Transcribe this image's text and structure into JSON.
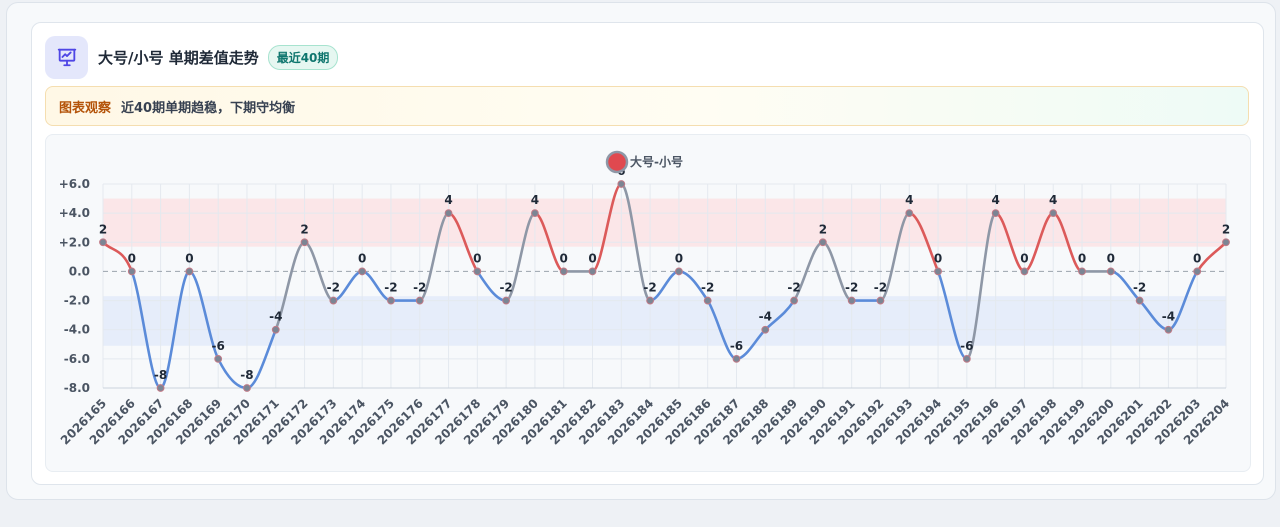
{
  "header": {
    "icon": "presentation-chart-icon",
    "title": "大号/小号 单期差值走势",
    "badge": "最近40期"
  },
  "note": {
    "label": "图表观察",
    "text": "近40期单期趋稳，下期守均衡"
  },
  "colors": {
    "up": "#dc5a5a",
    "down": "#5b8bd9",
    "flat": "#8e97a6",
    "upper_band": "#fbe3e6",
    "lower_band": "#e3ebfa",
    "legend_dot": "#e0494f"
  },
  "chart_data": {
    "type": "line",
    "series": [
      {
        "name": "大号-小号",
        "values": [
          2,
          0,
          -8,
          0,
          -6,
          -8,
          -4,
          2,
          -2,
          0,
          -2,
          -2,
          4,
          0,
          -2,
          4,
          0,
          0,
          6,
          -2,
          0,
          -2,
          -6,
          -4,
          -2,
          2,
          -2,
          -2,
          4,
          0,
          -6,
          4,
          0,
          4,
          0,
          0,
          -2,
          -4,
          0,
          2
        ]
      }
    ],
    "categories": [
      "2026165",
      "2026166",
      "2026167",
      "2026168",
      "2026169",
      "2026170",
      "2026171",
      "2026172",
      "2026173",
      "2026174",
      "2026175",
      "2026176",
      "2026177",
      "2026178",
      "2026179",
      "2026180",
      "2026181",
      "2026182",
      "2026183",
      "2026184",
      "2026185",
      "2026186",
      "2026187",
      "2026188",
      "2026189",
      "2026190",
      "2026191",
      "2026192",
      "2026193",
      "2026194",
      "2026195",
      "2026196",
      "2026197",
      "2026198",
      "2026199",
      "2026200",
      "2026201",
      "2026202",
      "2026203",
      "2026204"
    ],
    "yticks": [
      "+6.0",
      "+4.0",
      "+2.0",
      "0.0",
      "-2.0",
      "-4.0",
      "-6.0",
      "-8.0"
    ],
    "ylim": [
      -8,
      6
    ],
    "bands": [
      [
        1.7,
        5.0
      ],
      [
        -5.1,
        -1.7
      ]
    ],
    "zero_line": "dashed",
    "legend_position": "top-center",
    "grid": true
  }
}
